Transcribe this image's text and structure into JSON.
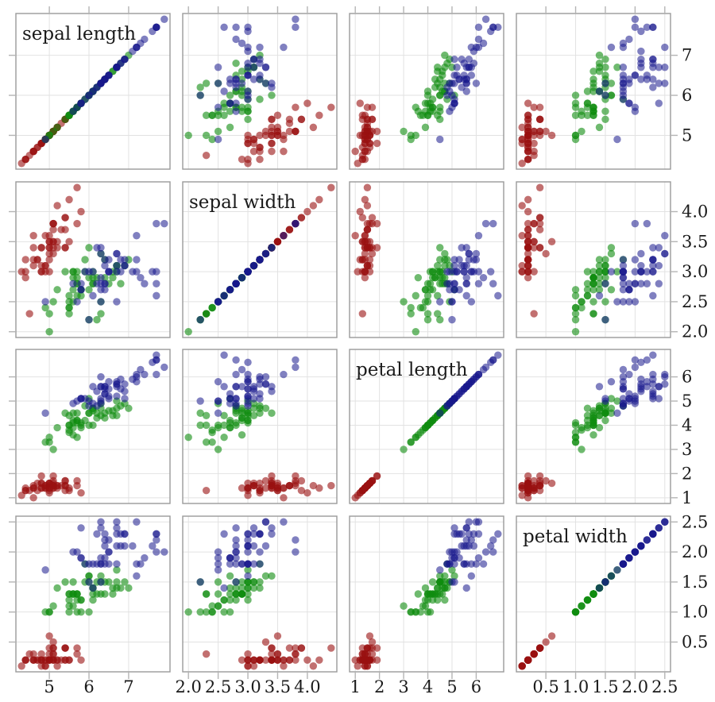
{
  "figure": {
    "kind": "scatterplot-matrix",
    "background_color": "#ffffff",
    "grid_color": "#e2e2e2",
    "panel_border_color": "#9a9a9a",
    "outer_tick_color": "#b4b4b4",
    "text_color": "#1a1a1a"
  },
  "chart_data": {
    "type": "scatter",
    "subtype": "pairs-matrix",
    "title": "",
    "grid": true,
    "panel_rule": "panel(i,j) plots column variable j on x vs row variable i on y; diagonal panels show the variable name and an identity line of points",
    "axis_label_sides": {
      "x_tick_labels": "bottom",
      "y_tick_labels": "right"
    },
    "variables": [
      {
        "key": "sepal_length",
        "label": "sepal length",
        "lim": [
          4.156,
          8.044
        ],
        "ticks": [
          5,
          6,
          7
        ],
        "tick_labels": [
          "5",
          "6",
          "7"
        ]
      },
      {
        "key": "sepal_width",
        "label": "sepal width",
        "lim": [
          1.904,
          4.496
        ],
        "ticks": [
          2.0,
          2.5,
          3.0,
          3.5,
          4.0
        ],
        "tick_labels": [
          "2.0",
          "2.5",
          "3.0",
          "3.5",
          "4.0"
        ]
      },
      {
        "key": "petal_length",
        "label": "petal length",
        "lim": [
          0.764,
          7.136
        ],
        "ticks": [
          1,
          2,
          3,
          4,
          5,
          6
        ],
        "tick_labels": [
          "1",
          "2",
          "3",
          "4",
          "5",
          "6"
        ]
      },
      {
        "key": "petal_width",
        "label": "petal width",
        "lim": [
          0.004,
          2.596
        ],
        "ticks": [
          0.5,
          1.0,
          1.5,
          2.0,
          2.5
        ],
        "tick_labels": [
          "0.5",
          "1.0",
          "1.5",
          "2.0",
          "2.5"
        ]
      }
    ],
    "series": [
      {
        "name": "series-red",
        "color": "#991111",
        "opacity": 0.6,
        "points": [
          [
            5.1,
            3.5,
            1.4,
            0.2
          ],
          [
            4.9,
            3.0,
            1.4,
            0.2
          ],
          [
            4.7,
            3.2,
            1.3,
            0.2
          ],
          [
            4.6,
            3.1,
            1.5,
            0.2
          ],
          [
            5.0,
            3.6,
            1.4,
            0.2
          ],
          [
            5.4,
            3.9,
            1.7,
            0.4
          ],
          [
            4.6,
            3.4,
            1.4,
            0.3
          ],
          [
            5.0,
            3.4,
            1.5,
            0.2
          ],
          [
            4.4,
            2.9,
            1.4,
            0.2
          ],
          [
            4.9,
            3.1,
            1.5,
            0.1
          ],
          [
            5.4,
            3.7,
            1.5,
            0.2
          ],
          [
            4.8,
            3.4,
            1.6,
            0.2
          ],
          [
            4.8,
            3.0,
            1.4,
            0.1
          ],
          [
            4.3,
            3.0,
            1.1,
            0.1
          ],
          [
            5.8,
            4.0,
            1.2,
            0.2
          ],
          [
            5.7,
            4.4,
            1.5,
            0.4
          ],
          [
            5.4,
            3.9,
            1.3,
            0.4
          ],
          [
            5.1,
            3.5,
            1.4,
            0.3
          ],
          [
            5.7,
            3.8,
            1.7,
            0.3
          ],
          [
            5.1,
            3.8,
            1.5,
            0.3
          ],
          [
            5.4,
            3.4,
            1.7,
            0.2
          ],
          [
            5.1,
            3.7,
            1.5,
            0.4
          ],
          [
            4.6,
            3.6,
            1.0,
            0.2
          ],
          [
            5.1,
            3.3,
            1.7,
            0.5
          ],
          [
            4.8,
            3.4,
            1.9,
            0.2
          ],
          [
            5.0,
            3.0,
            1.6,
            0.2
          ],
          [
            5.0,
            3.4,
            1.6,
            0.4
          ],
          [
            5.2,
            3.5,
            1.5,
            0.2
          ],
          [
            5.2,
            3.4,
            1.4,
            0.2
          ],
          [
            4.7,
            3.2,
            1.6,
            0.2
          ],
          [
            4.8,
            3.1,
            1.6,
            0.2
          ],
          [
            5.4,
            3.4,
            1.5,
            0.4
          ],
          [
            5.2,
            4.1,
            1.5,
            0.1
          ],
          [
            5.5,
            4.2,
            1.4,
            0.2
          ],
          [
            4.9,
            3.1,
            1.5,
            0.2
          ],
          [
            5.0,
            3.2,
            1.2,
            0.2
          ],
          [
            5.5,
            3.5,
            1.3,
            0.2
          ],
          [
            4.9,
            3.6,
            1.4,
            0.1
          ],
          [
            4.4,
            3.0,
            1.3,
            0.2
          ],
          [
            5.1,
            3.4,
            1.5,
            0.2
          ],
          [
            5.0,
            3.5,
            1.3,
            0.3
          ],
          [
            4.5,
            2.3,
            1.3,
            0.3
          ],
          [
            4.4,
            3.2,
            1.3,
            0.2
          ],
          [
            5.0,
            3.5,
            1.6,
            0.6
          ],
          [
            5.1,
            3.8,
            1.9,
            0.4
          ],
          [
            4.8,
            3.0,
            1.4,
            0.3
          ],
          [
            5.1,
            3.8,
            1.6,
            0.2
          ],
          [
            4.6,
            3.2,
            1.4,
            0.2
          ],
          [
            5.3,
            3.7,
            1.5,
            0.2
          ],
          [
            5.0,
            3.3,
            1.4,
            0.2
          ]
        ]
      },
      {
        "name": "series-green",
        "color": "#0f8c0f",
        "opacity": 0.6,
        "points": [
          [
            7.0,
            3.2,
            4.7,
            1.4
          ],
          [
            6.4,
            3.2,
            4.5,
            1.5
          ],
          [
            6.9,
            3.1,
            4.9,
            1.5
          ],
          [
            5.5,
            2.3,
            4.0,
            1.3
          ],
          [
            6.5,
            2.8,
            4.6,
            1.5
          ],
          [
            5.7,
            2.8,
            4.5,
            1.3
          ],
          [
            6.3,
            3.3,
            4.7,
            1.6
          ],
          [
            4.9,
            2.4,
            3.3,
            1.0
          ],
          [
            6.6,
            2.9,
            4.6,
            1.3
          ],
          [
            5.2,
            2.7,
            3.9,
            1.4
          ],
          [
            5.0,
            2.0,
            3.5,
            1.0
          ],
          [
            5.9,
            3.0,
            4.2,
            1.5
          ],
          [
            6.0,
            2.2,
            4.0,
            1.0
          ],
          [
            6.1,
            2.9,
            4.7,
            1.4
          ],
          [
            5.6,
            2.9,
            3.6,
            1.3
          ],
          [
            6.7,
            3.1,
            4.4,
            1.4
          ],
          [
            5.6,
            3.0,
            4.5,
            1.5
          ],
          [
            5.8,
            2.7,
            4.1,
            1.0
          ],
          [
            6.2,
            2.2,
            4.5,
            1.5
          ],
          [
            5.6,
            2.5,
            3.9,
            1.1
          ],
          [
            5.9,
            3.2,
            4.8,
            1.8
          ],
          [
            6.1,
            2.8,
            4.0,
            1.3
          ],
          [
            6.3,
            2.5,
            4.9,
            1.5
          ],
          [
            6.1,
            2.8,
            4.7,
            1.2
          ],
          [
            6.4,
            2.9,
            4.3,
            1.3
          ],
          [
            6.6,
            3.0,
            4.4,
            1.4
          ],
          [
            6.8,
            2.8,
            4.8,
            1.4
          ],
          [
            6.7,
            3.0,
            5.0,
            1.7
          ],
          [
            6.0,
            2.9,
            4.5,
            1.5
          ],
          [
            5.7,
            2.6,
            3.5,
            1.0
          ],
          [
            5.5,
            2.4,
            3.8,
            1.1
          ],
          [
            5.5,
            2.4,
            3.7,
            1.0
          ],
          [
            5.8,
            2.7,
            3.9,
            1.2
          ],
          [
            6.0,
            2.7,
            5.1,
            1.6
          ],
          [
            5.4,
            3.0,
            4.5,
            1.5
          ],
          [
            6.0,
            3.4,
            4.5,
            1.6
          ],
          [
            6.7,
            3.1,
            4.7,
            1.5
          ],
          [
            6.3,
            2.3,
            4.4,
            1.3
          ],
          [
            5.6,
            3.0,
            4.1,
            1.3
          ],
          [
            5.5,
            2.5,
            4.0,
            1.3
          ],
          [
            5.5,
            2.6,
            4.4,
            1.2
          ],
          [
            6.1,
            3.0,
            4.6,
            1.4
          ],
          [
            5.8,
            2.6,
            4.0,
            1.2
          ],
          [
            5.0,
            2.3,
            3.3,
            1.0
          ],
          [
            5.6,
            2.7,
            4.2,
            1.3
          ],
          [
            5.7,
            3.0,
            4.2,
            1.2
          ],
          [
            5.7,
            2.9,
            4.2,
            1.3
          ],
          [
            6.2,
            2.9,
            4.3,
            1.3
          ],
          [
            5.1,
            2.5,
            3.0,
            1.1
          ],
          [
            5.7,
            2.8,
            4.1,
            1.3
          ]
        ]
      },
      {
        "name": "series-blue",
        "color": "#18188c",
        "opacity": 0.55,
        "points": [
          [
            6.3,
            3.3,
            6.0,
            2.5
          ],
          [
            5.8,
            2.7,
            5.1,
            1.9
          ],
          [
            7.1,
            3.0,
            5.9,
            2.1
          ],
          [
            6.3,
            2.9,
            5.6,
            1.8
          ],
          [
            6.5,
            3.0,
            5.8,
            2.2
          ],
          [
            7.6,
            3.0,
            6.6,
            2.1
          ],
          [
            4.9,
            2.5,
            4.5,
            1.7
          ],
          [
            7.3,
            2.9,
            6.3,
            1.8
          ],
          [
            6.7,
            2.5,
            5.8,
            1.8
          ],
          [
            7.2,
            3.6,
            6.1,
            2.5
          ],
          [
            6.5,
            3.2,
            5.1,
            2.0
          ],
          [
            6.4,
            2.7,
            5.3,
            1.9
          ],
          [
            6.8,
            3.0,
            5.5,
            2.1
          ],
          [
            5.7,
            2.5,
            5.0,
            2.0
          ],
          [
            5.8,
            2.8,
            5.1,
            2.4
          ],
          [
            6.4,
            3.2,
            5.3,
            2.3
          ],
          [
            6.5,
            3.0,
            5.5,
            1.8
          ],
          [
            7.7,
            3.8,
            6.7,
            2.2
          ],
          [
            7.7,
            2.6,
            6.9,
            2.3
          ],
          [
            6.0,
            2.2,
            5.0,
            1.5
          ],
          [
            6.9,
            3.2,
            5.7,
            2.3
          ],
          [
            5.6,
            2.8,
            4.9,
            2.0
          ],
          [
            7.7,
            2.8,
            6.7,
            2.0
          ],
          [
            6.3,
            2.7,
            4.9,
            1.8
          ],
          [
            6.7,
            3.3,
            5.7,
            2.1
          ],
          [
            7.2,
            3.2,
            6.0,
            1.8
          ],
          [
            6.2,
            2.8,
            4.8,
            1.8
          ],
          [
            6.1,
            3.0,
            4.9,
            1.8
          ],
          [
            6.4,
            2.8,
            5.6,
            2.1
          ],
          [
            7.2,
            3.0,
            5.8,
            1.6
          ],
          [
            7.4,
            2.8,
            6.1,
            1.9
          ],
          [
            7.9,
            3.8,
            6.4,
            2.0
          ],
          [
            6.4,
            2.8,
            5.6,
            2.2
          ],
          [
            6.3,
            2.8,
            5.1,
            1.5
          ],
          [
            6.1,
            2.6,
            5.6,
            1.4
          ],
          [
            7.7,
            3.0,
            6.1,
            2.3
          ],
          [
            6.3,
            3.4,
            5.6,
            2.4
          ],
          [
            6.4,
            3.1,
            5.5,
            1.8
          ],
          [
            6.0,
            3.0,
            4.8,
            1.8
          ],
          [
            6.9,
            3.1,
            5.4,
            2.1
          ],
          [
            6.7,
            3.1,
            5.6,
            2.4
          ],
          [
            6.9,
            3.1,
            5.1,
            2.3
          ],
          [
            5.8,
            2.7,
            5.1,
            1.9
          ],
          [
            6.8,
            3.2,
            5.9,
            2.3
          ],
          [
            6.7,
            3.3,
            5.7,
            2.5
          ],
          [
            6.7,
            3.0,
            5.2,
            2.3
          ],
          [
            6.3,
            2.5,
            5.0,
            1.9
          ],
          [
            6.5,
            3.0,
            5.2,
            2.0
          ],
          [
            6.2,
            3.4,
            5.4,
            2.3
          ],
          [
            5.9,
            3.0,
            5.1,
            1.8
          ]
        ]
      }
    ]
  }
}
